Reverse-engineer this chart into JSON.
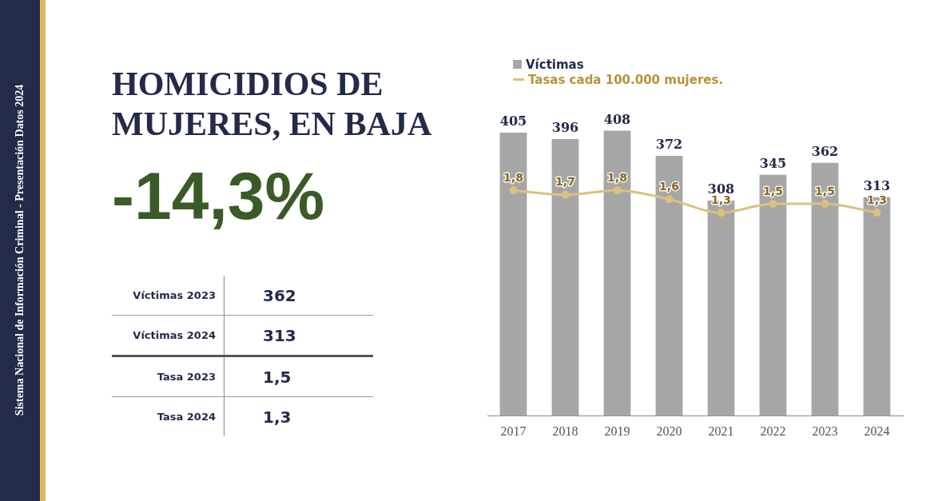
{
  "chart_data": [
    {
      "type": "other",
      "title": "HOMICIDIOS DE MUJERES, EN BAJA",
      "annotations": [
        "-14,3%",
        "Sistema Nacional de Información Criminal - Presentación Datos 2024"
      ],
      "categories": [
        "Víctimas 2023",
        "Víctimas 2024",
        "Tasa 2023",
        "Tasa 2024"
      ],
      "value_labels": [
        "362",
        "313",
        "1,5",
        "1,3"
      ]
    },
    {
      "type": "bar",
      "categories": [
        "2017",
        "2018",
        "2019",
        "2020",
        "2021",
        "2022",
        "2023",
        "2024"
      ],
      "series": [
        {
          "name": "Víctimas",
          "type": "bar",
          "color": "#a6a6a6",
          "values": [
            405,
            396,
            408,
            372,
            308,
            345,
            362,
            313
          ]
        },
        {
          "name": "Tasas cada 100.000 mujeres.",
          "type": "line",
          "axis": "y2",
          "color": "#dcc17e",
          "values": [
            1.8,
            1.7,
            1.8,
            1.6,
            1.3,
            1.5,
            1.5,
            1.3
          ],
          "value_labels": [
            "1,8",
            "1,7",
            "1,8",
            "1,6",
            "1,3",
            "1,5",
            "1,5",
            "1,3"
          ]
        }
      ],
      "data_labels": true,
      "marker": "circle",
      "legend": "top left",
      "grid": false,
      "tick_labels": "x"
    }
  ]
}
